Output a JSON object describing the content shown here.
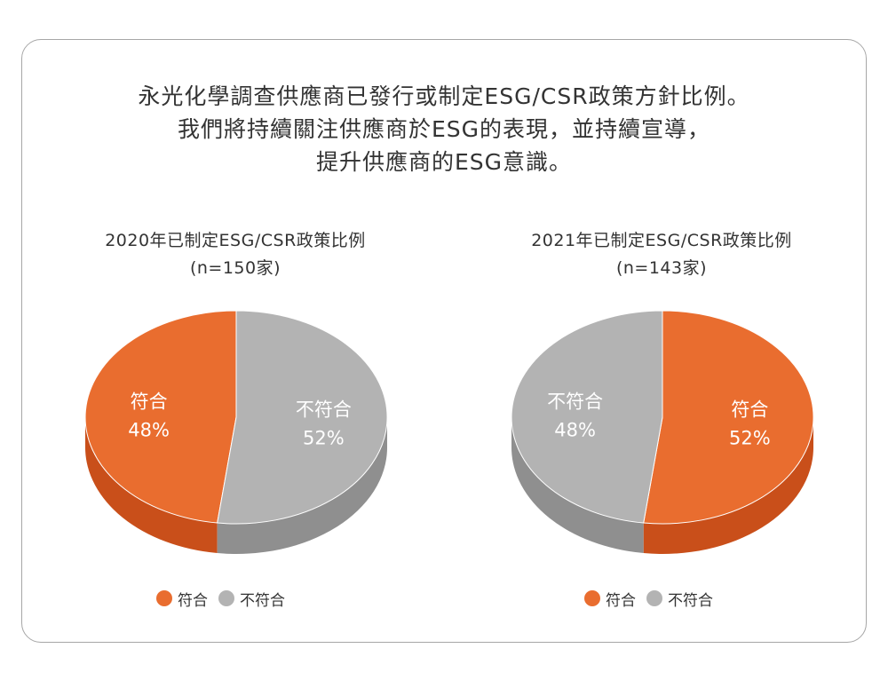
{
  "headline": {
    "lines": [
      "永光化學調查供應商已發行或制定ESG/CSR政策方針比例。",
      "我們將持續關注供應商於ESG的表現，並持續宣導，",
      "提升供應商的ESG意識。"
    ]
  },
  "colors": {
    "comply_top": "#e96d2f",
    "comply_side": "#c94f1a",
    "noncomply_top": "#b3b3b3",
    "noncomply_side": "#8f8f8f",
    "label_text": "#ffffff"
  },
  "chart_data": [
    {
      "type": "pie",
      "title_lines": [
        "2020年已制定ESG/CSR政策比例",
        "(n=150家)"
      ],
      "slices": [
        {
          "label": "符合",
          "value": 48,
          "display": "48%",
          "color": "#e96d2f"
        },
        {
          "label": "不符合",
          "value": 52,
          "display": "52%",
          "color": "#b3b3b3"
        }
      ],
      "start": "top",
      "direction": "counterclockwise",
      "legend": {
        "placement": "bottom",
        "entries": [
          "符合",
          "不符合"
        ]
      }
    },
    {
      "type": "pie",
      "title_lines": [
        "2021年已制定ESG/CSR政策比例",
        "(n=143家)"
      ],
      "slices": [
        {
          "label": "符合",
          "value": 52,
          "display": "52%",
          "color": "#e96d2f"
        },
        {
          "label": "不符合",
          "value": 48,
          "display": "48%",
          "color": "#b3b3b3"
        }
      ],
      "start": "top",
      "direction": "clockwise",
      "legend": {
        "placement": "bottom",
        "entries": [
          "符合",
          "不符合"
        ]
      }
    }
  ]
}
